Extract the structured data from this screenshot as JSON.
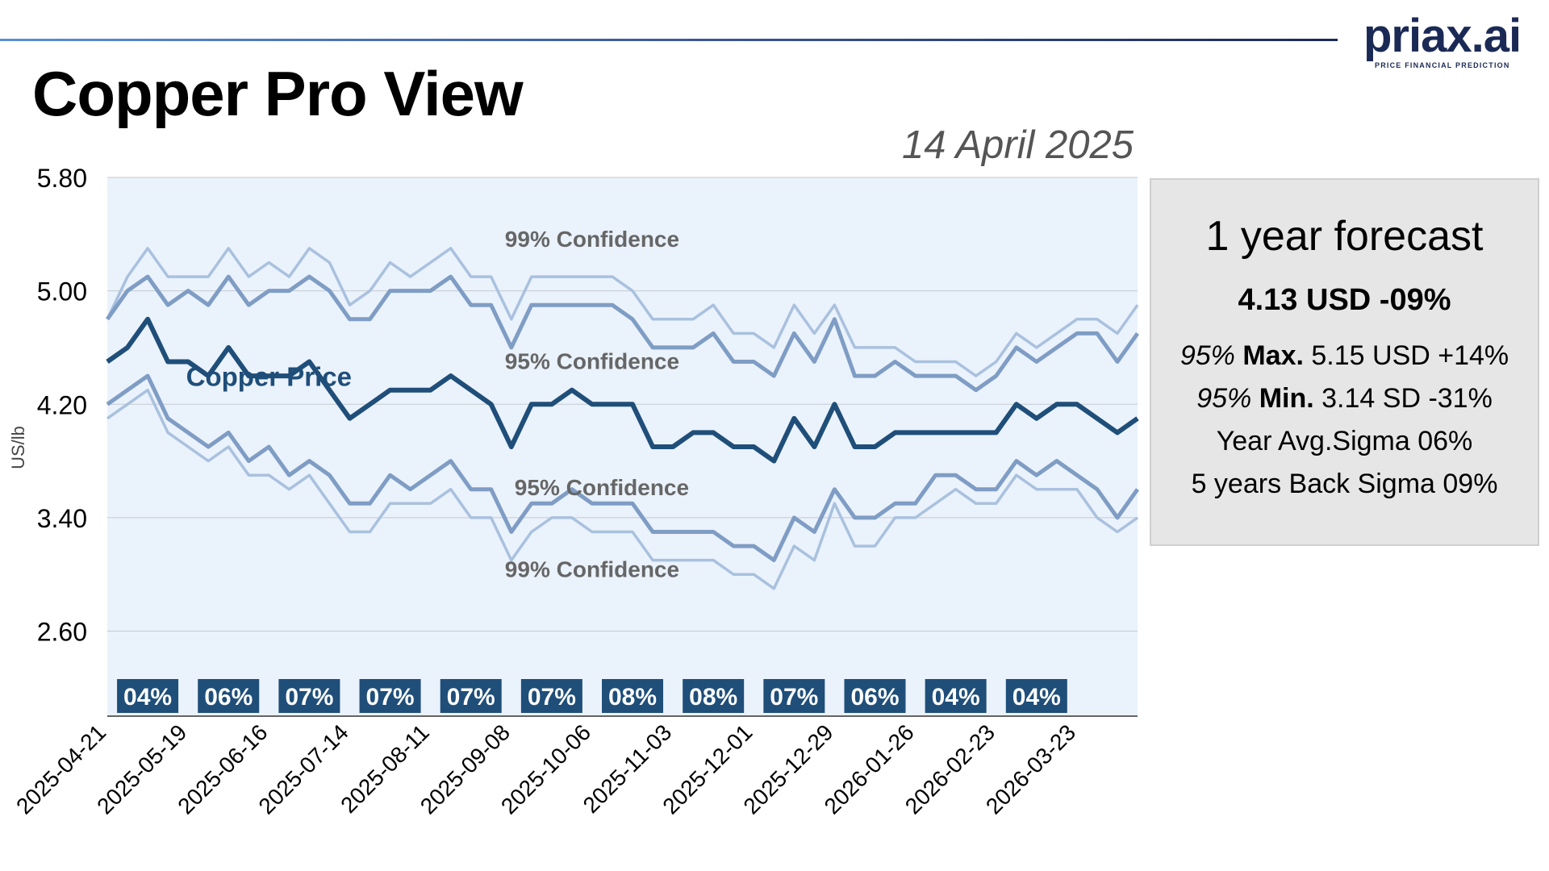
{
  "page": {
    "title": "Copper Pro View",
    "date": "14 April 2025"
  },
  "logo": {
    "name": "priax.ai",
    "tagline": "PRICE FINANCIAL PREDICTION"
  },
  "forecast": {
    "title": "1 year forecast",
    "headline": "4.13 USD -09%",
    "max_prefix": "95%",
    "max_label": "Max.",
    "max_value": "5.15 USD +14%",
    "min_prefix": "95%",
    "min_label": "Min.",
    "min_value": "3.14 SD -31%",
    "year_avg_sigma": "Year Avg.Sigma 06%",
    "back_sigma": "5 years Back Sigma 09%"
  },
  "colors": {
    "plot_bg": "#eaf2fc",
    "price": "#1f4e79",
    "band95": "#7f9dc4",
    "band99": "#a9c1de",
    "label_gray": "#666666",
    "badge_bg": "#1f4e79"
  },
  "chart_data": {
    "type": "line",
    "title": "",
    "xlabel": "",
    "ylabel": "US/lb",
    "ylim": [
      2.0,
      5.8
    ],
    "yticks": [
      "5.80",
      "5.00",
      "4.20",
      "3.40",
      "2.60"
    ],
    "ytick_values": [
      5.8,
      5.0,
      4.2,
      3.4,
      2.6
    ],
    "xtick_labels": [
      "2025-04-21",
      "2025-05-19",
      "2025-06-16",
      "2025-07-14",
      "2025-08-11",
      "2025-09-08",
      "2025-10-06",
      "2025-11-03",
      "2025-12-01",
      "2025-12-29",
      "2026-01-26",
      "2026-02-23",
      "2026-03-23"
    ],
    "x_start": "2025-04-21",
    "x_step_days": 7,
    "grid": true,
    "series": [
      {
        "name": "99% Confidence",
        "role": "upper99",
        "values": [
          4.8,
          5.1,
          5.3,
          5.1,
          5.1,
          5.1,
          5.3,
          5.1,
          5.2,
          5.1,
          5.3,
          5.2,
          4.9,
          5.0,
          5.2,
          5.1,
          5.2,
          5.3,
          5.1,
          5.1,
          4.8,
          5.1,
          5.1,
          5.1,
          5.1,
          5.1,
          5.0,
          4.8,
          4.8,
          4.8,
          4.9,
          4.7,
          4.7,
          4.6,
          4.9,
          4.7,
          4.9,
          4.6,
          4.6,
          4.6,
          4.5,
          4.5,
          4.5,
          4.4,
          4.5,
          4.7,
          4.6,
          4.7,
          4.8,
          4.8,
          4.7,
          4.9
        ]
      },
      {
        "name": "95% Confidence",
        "role": "upper95",
        "values": [
          4.8,
          5.0,
          5.1,
          4.9,
          5.0,
          4.9,
          5.1,
          4.9,
          5.0,
          5.0,
          5.1,
          5.0,
          4.8,
          4.8,
          5.0,
          5.0,
          5.0,
          5.1,
          4.9,
          4.9,
          4.6,
          4.9,
          4.9,
          4.9,
          4.9,
          4.9,
          4.8,
          4.6,
          4.6,
          4.6,
          4.7,
          4.5,
          4.5,
          4.4,
          4.7,
          4.5,
          4.8,
          4.4,
          4.4,
          4.5,
          4.4,
          4.4,
          4.4,
          4.3,
          4.4,
          4.6,
          4.5,
          4.6,
          4.7,
          4.7,
          4.5,
          4.7
        ]
      },
      {
        "name": "Copper Price",
        "role": "price",
        "values": [
          4.5,
          4.6,
          4.8,
          4.5,
          4.5,
          4.4,
          4.6,
          4.4,
          4.4,
          4.4,
          4.5,
          4.3,
          4.1,
          4.2,
          4.3,
          4.3,
          4.3,
          4.4,
          4.3,
          4.2,
          3.9,
          4.2,
          4.2,
          4.3,
          4.2,
          4.2,
          4.2,
          3.9,
          3.9,
          4.0,
          4.0,
          3.9,
          3.9,
          3.8,
          4.1,
          3.9,
          4.2,
          3.9,
          3.9,
          4.0,
          4.0,
          4.0,
          4.0,
          4.0,
          4.0,
          4.2,
          4.1,
          4.2,
          4.2,
          4.1,
          4.0,
          4.1
        ]
      },
      {
        "name": "95% Confidence",
        "role": "lower95",
        "values": [
          4.2,
          4.3,
          4.4,
          4.1,
          4.0,
          3.9,
          4.0,
          3.8,
          3.9,
          3.7,
          3.8,
          3.7,
          3.5,
          3.5,
          3.7,
          3.6,
          3.7,
          3.8,
          3.6,
          3.6,
          3.3,
          3.5,
          3.5,
          3.6,
          3.5,
          3.5,
          3.5,
          3.3,
          3.3,
          3.3,
          3.3,
          3.2,
          3.2,
          3.1,
          3.4,
          3.3,
          3.6,
          3.4,
          3.4,
          3.5,
          3.5,
          3.7,
          3.7,
          3.6,
          3.6,
          3.8,
          3.7,
          3.8,
          3.7,
          3.6,
          3.4,
          3.6
        ]
      },
      {
        "name": "99% Confidence",
        "role": "lower99",
        "values": [
          4.1,
          4.2,
          4.3,
          4.0,
          3.9,
          3.8,
          3.9,
          3.7,
          3.7,
          3.6,
          3.7,
          3.5,
          3.3,
          3.3,
          3.5,
          3.5,
          3.5,
          3.6,
          3.4,
          3.4,
          3.1,
          3.3,
          3.4,
          3.4,
          3.3,
          3.3,
          3.3,
          3.1,
          3.1,
          3.1,
          3.1,
          3.0,
          3.0,
          2.9,
          3.2,
          3.1,
          3.5,
          3.2,
          3.2,
          3.4,
          3.4,
          3.5,
          3.6,
          3.5,
          3.5,
          3.7,
          3.6,
          3.6,
          3.6,
          3.4,
          3.3,
          3.4
        ]
      }
    ],
    "annotations": [
      {
        "text": "99% Confidence",
        "role": "upper99"
      },
      {
        "text": "95% Confidence",
        "role": "upper95"
      },
      {
        "text": "Copper Price",
        "role": "price"
      },
      {
        "text": "95% Confidence",
        "role": "lower95"
      },
      {
        "text": "99% Confidence",
        "role": "lower99"
      }
    ],
    "sigma_badges": [
      {
        "label": "04%",
        "date": "2025-05-05"
      },
      {
        "label": "06%",
        "date": "2025-06-02"
      },
      {
        "label": "07%",
        "date": "2025-06-30"
      },
      {
        "label": "07%",
        "date": "2025-07-28"
      },
      {
        "label": "07%",
        "date": "2025-08-25"
      },
      {
        "label": "07%",
        "date": "2025-09-22"
      },
      {
        "label": "08%",
        "date": "2025-10-20"
      },
      {
        "label": "08%",
        "date": "2025-11-17"
      },
      {
        "label": "07%",
        "date": "2025-12-15"
      },
      {
        "label": "06%",
        "date": "2026-01-12"
      },
      {
        "label": "04%",
        "date": "2026-02-09"
      },
      {
        "label": "04%",
        "date": "2026-03-09"
      }
    ]
  }
}
